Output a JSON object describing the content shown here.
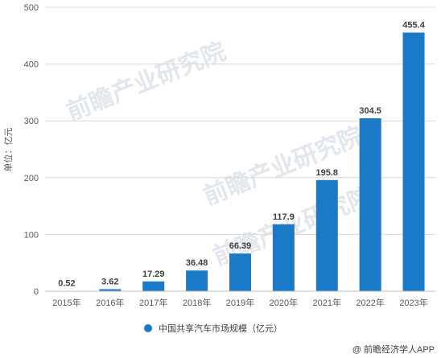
{
  "chart_data": {
    "type": "bar",
    "categories": [
      "2015年",
      "2016年",
      "2017年",
      "2018年",
      "2019年",
      "2020年",
      "2021年",
      "2022年",
      "2023年"
    ],
    "series": [
      {
        "name": "中国共享汽车市场规模（亿元）",
        "values": [
          0.52,
          3.62,
          17.29,
          36.48,
          66.39,
          117.9,
          195.8,
          304.5,
          455.4
        ]
      }
    ],
    "data_labels": [
      "0.52",
      "3.62",
      "17.29",
      "36.48",
      "66.39",
      "117.9",
      "195.8",
      "304.5",
      "455.4"
    ],
    "ylabel": "单位：亿元",
    "ylim": [
      0,
      500
    ],
    "yticks": [
      0,
      100,
      200,
      300,
      400,
      500
    ],
    "grid": true,
    "legend_position": "bottom",
    "bar_color": "#1a7ac7"
  },
  "watermark": {
    "text": "前瞻产业研究院",
    "color": "#c8d3dc"
  },
  "credit": {
    "text": "@ 前瞻经济学人APP"
  }
}
